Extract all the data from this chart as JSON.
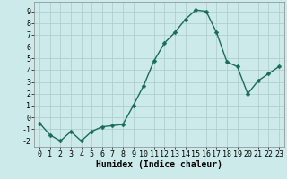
{
  "x": [
    0,
    1,
    2,
    3,
    4,
    5,
    6,
    7,
    8,
    9,
    10,
    11,
    12,
    13,
    14,
    15,
    16,
    17,
    18,
    19,
    20,
    21,
    22,
    23
  ],
  "y": [
    -0.5,
    -1.5,
    -2.0,
    -1.2,
    -2.0,
    -1.2,
    -0.8,
    -0.7,
    -0.6,
    1.0,
    2.7,
    4.8,
    6.3,
    7.2,
    8.3,
    9.1,
    9.0,
    7.2,
    4.7,
    4.3,
    2.0,
    3.1,
    3.7,
    4.3
  ],
  "xlabel": "Humidex (Indice chaleur)",
  "xlim": [
    -0.5,
    23.5
  ],
  "ylim": [
    -2.5,
    9.8
  ],
  "yticks": [
    -2,
    -1,
    0,
    1,
    2,
    3,
    4,
    5,
    6,
    7,
    8,
    9
  ],
  "xticks": [
    0,
    1,
    2,
    3,
    4,
    5,
    6,
    7,
    8,
    9,
    10,
    11,
    12,
    13,
    14,
    15,
    16,
    17,
    18,
    19,
    20,
    21,
    22,
    23
  ],
  "line_color": "#1a6b5a",
  "marker_color": "#1a6b5a",
  "bg_color": "#cceaea",
  "grid_color": "#aacaca",
  "xlabel_fontsize": 7,
  "tick_fontsize": 6,
  "line_width": 1.0,
  "marker_size": 2.5
}
